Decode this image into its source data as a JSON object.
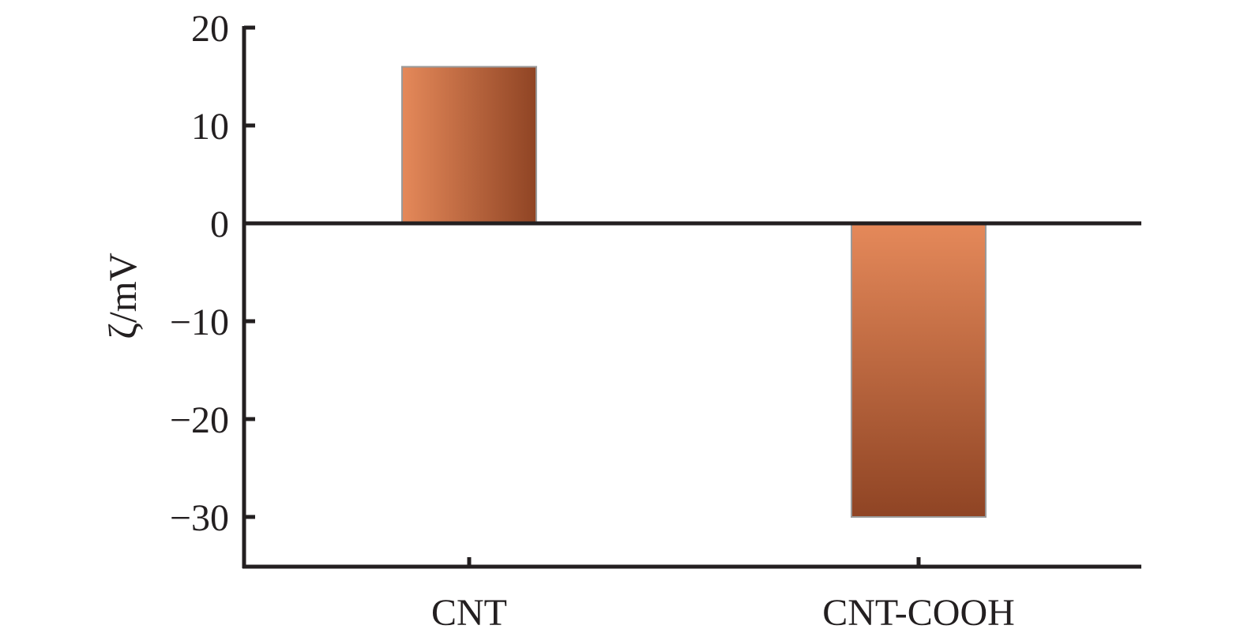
{
  "chart_data": {
    "type": "bar",
    "title": "",
    "xlabel": "",
    "ylabel": "ζ/mV",
    "categories": [
      "CNT",
      "CNT-COOH"
    ],
    "values": [
      16,
      -30
    ],
    "ylim": [
      -35,
      20
    ],
    "yticks": [
      20,
      10,
      0,
      -10,
      -20,
      -30
    ],
    "ytick_labels": [
      "20",
      "10",
      "0",
      "−10",
      "−20",
      "−30"
    ],
    "grid": false,
    "legend": "none",
    "colors": {
      "bar_light": "#e5895a",
      "bar_dark": "#8f4424",
      "bar_edge": "#9a9a9a",
      "axis": "#231f20",
      "text": "#231f20"
    }
  }
}
